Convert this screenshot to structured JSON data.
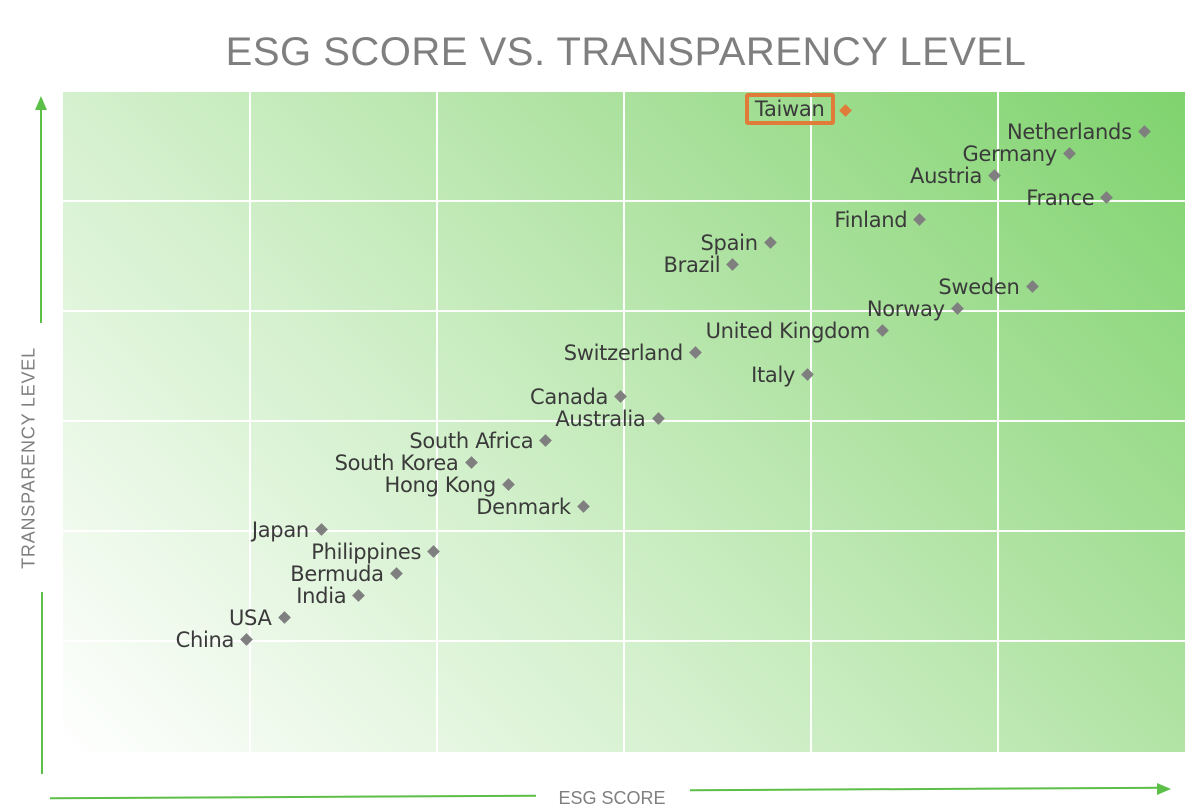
{
  "chart_data": {
    "type": "scatter",
    "title": "ESG SCORE VS. TRANSPARENCY LEVEL",
    "xlabel": "ESG SCORE",
    "ylabel": "TRANSPARENCY LEVEL",
    "xlim": [
      0,
      6
    ],
    "ylim": [
      0,
      6
    ],
    "grid": true,
    "tick_labels_shown": false,
    "legend": null,
    "highlight": {
      "label": "Taiwan",
      "color": "#e07b39"
    },
    "marker_color": "#7f7f7f",
    "points": [
      {
        "label": "Taiwan",
        "x": 4.19,
        "y": 5.82,
        "highlight": true
      },
      {
        "label": "Netherlands",
        "x": 5.79,
        "y": 5.63
      },
      {
        "label": "Germany",
        "x": 5.39,
        "y": 5.43
      },
      {
        "label": "Austria",
        "x": 4.99,
        "y": 5.23
      },
      {
        "label": "France",
        "x": 5.59,
        "y": 5.03
      },
      {
        "label": "Finland",
        "x": 4.59,
        "y": 4.83
      },
      {
        "label": "Spain",
        "x": 3.79,
        "y": 4.62
      },
      {
        "label": "Brazil",
        "x": 3.59,
        "y": 4.42
      },
      {
        "label": "Sweden",
        "x": 5.19,
        "y": 4.22
      },
      {
        "label": "Norway",
        "x": 4.79,
        "y": 4.02
      },
      {
        "label": "United Kingdom",
        "x": 4.39,
        "y": 3.82
      },
      {
        "label": "Switzerland",
        "x": 3.39,
        "y": 3.62
      },
      {
        "label": "Italy",
        "x": 3.99,
        "y": 3.42
      },
      {
        "label": "Canada",
        "x": 2.99,
        "y": 3.22
      },
      {
        "label": "Australia",
        "x": 3.19,
        "y": 3.02
      },
      {
        "label": "South Africa",
        "x": 2.59,
        "y": 2.82
      },
      {
        "label": "South Korea",
        "x": 2.19,
        "y": 2.62
      },
      {
        "label": "Hong Kong",
        "x": 2.39,
        "y": 2.42
      },
      {
        "label": "Denmark",
        "x": 2.79,
        "y": 2.22
      },
      {
        "label": "Japan",
        "x": 1.39,
        "y": 2.01
      },
      {
        "label": "Philippines",
        "x": 1.99,
        "y": 1.81
      },
      {
        "label": "Bermuda",
        "x": 1.79,
        "y": 1.61
      },
      {
        "label": "India",
        "x": 1.59,
        "y": 1.41
      },
      {
        "label": "USA",
        "x": 1.19,
        "y": 1.21
      },
      {
        "label": "China",
        "x": 0.99,
        "y": 1.01
      }
    ]
  },
  "colors": {
    "axis_arrow": "#5cbf47",
    "title_text": "#7f7f7f",
    "label_text": "#3a3a3a",
    "highlight": "#e07b39"
  }
}
